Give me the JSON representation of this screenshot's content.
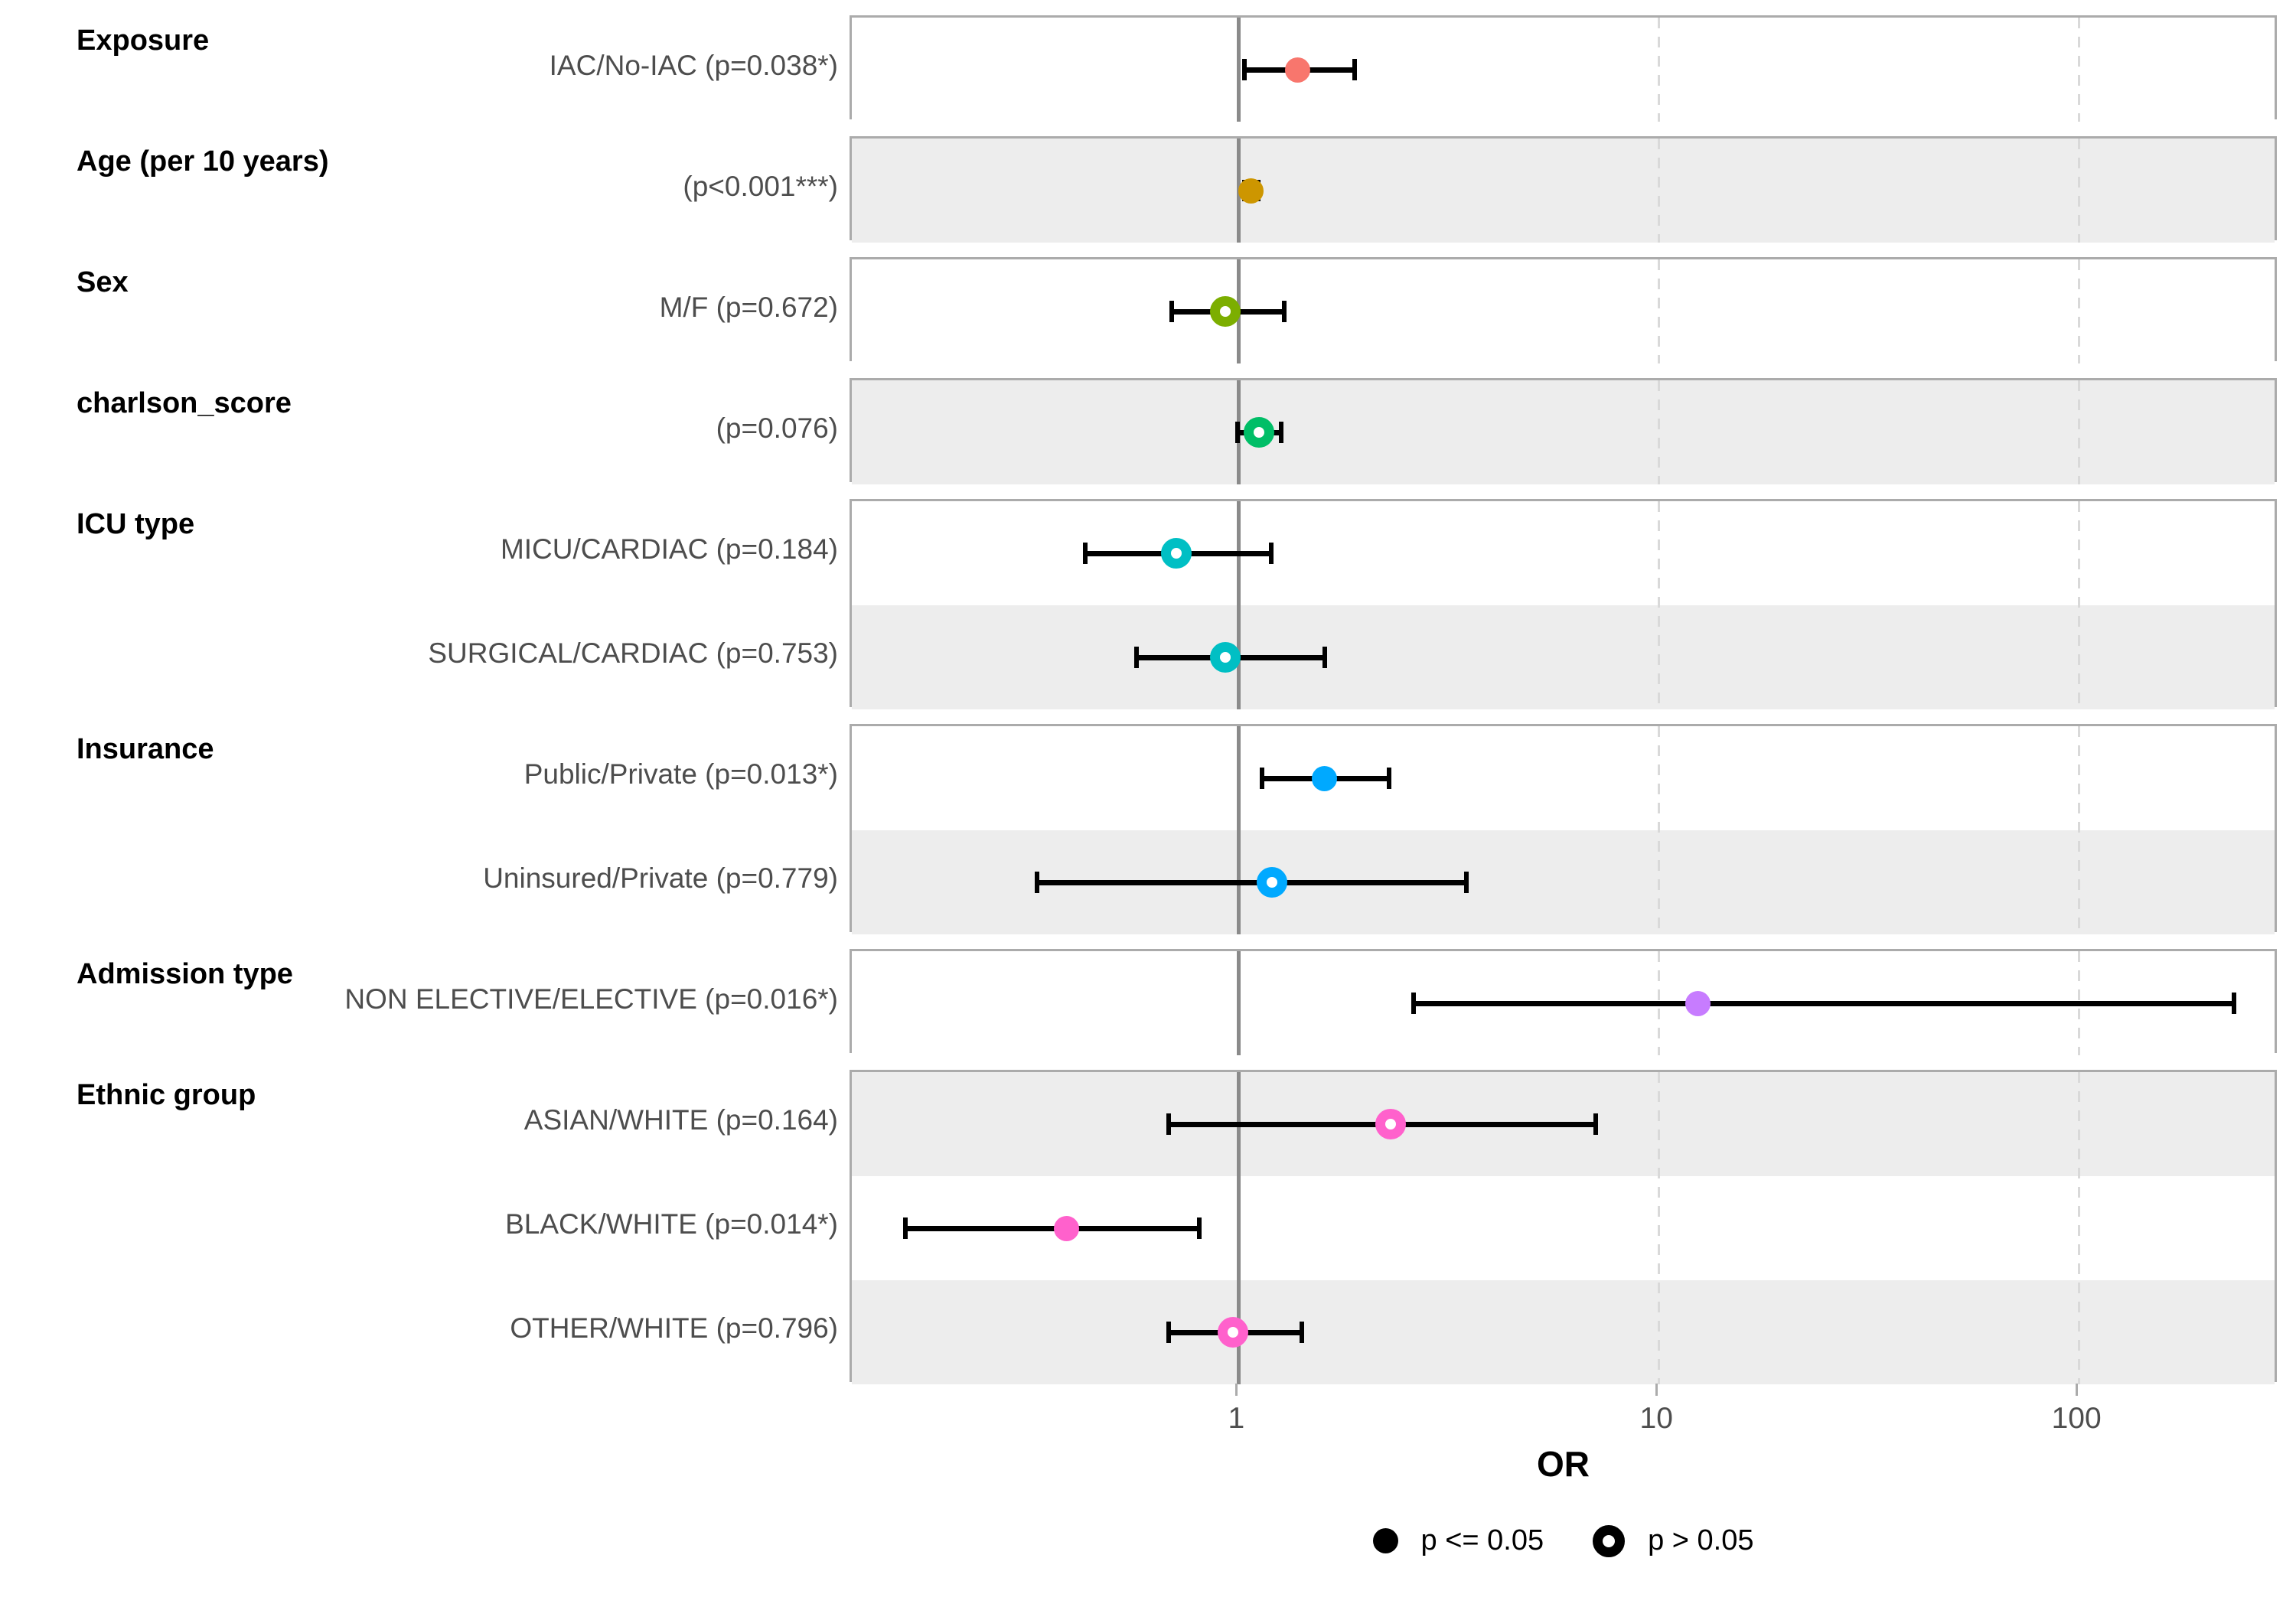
{
  "chart_data": {
    "type": "scatter",
    "subtype": "forest-plot",
    "xlabel": "OR",
    "x_scale": "log10",
    "x_domain": [
      0.12,
      300
    ],
    "x_ticks": [
      {
        "value": 1,
        "label": "1"
      },
      {
        "value": 10,
        "label": "10"
      },
      {
        "value": 100,
        "label": "100"
      }
    ],
    "reference_line": 1,
    "dashed_gridlines": [
      10,
      100
    ],
    "legend": {
      "significant_label": "p <= 0.05",
      "not_significant_label": "p > 0.05"
    },
    "groups": [
      {
        "title": "Exposure",
        "color": "#F8766D",
        "rows": [
          {
            "label": "IAC/No-IAC (p=0.038*)",
            "or": 1.38,
            "ci_low": 1.03,
            "ci_high": 1.9,
            "significant": true
          }
        ]
      },
      {
        "title": "Age (per 10 years)",
        "color": "#CD9600",
        "rows": [
          {
            "label": "(p<0.001***)",
            "or": 1.07,
            "ci_low": 1.03,
            "ci_high": 1.12,
            "significant": true
          }
        ]
      },
      {
        "title": "Sex",
        "color": "#7CAE00",
        "rows": [
          {
            "label": "M/F (p=0.672)",
            "or": 0.93,
            "ci_low": 0.69,
            "ci_high": 1.29,
            "significant": false
          }
        ]
      },
      {
        "title": "charlson_score",
        "color": "#00BE67",
        "rows": [
          {
            "label": "(p=0.076)",
            "or": 1.12,
            "ci_low": 0.99,
            "ci_high": 1.27,
            "significant": false
          }
        ]
      },
      {
        "title": "ICU type",
        "color": "#00BFC4",
        "rows": [
          {
            "label": "MICU/CARDIAC (p=0.184)",
            "or": 0.71,
            "ci_low": 0.43,
            "ci_high": 1.2,
            "significant": false
          },
          {
            "label": "SURGICAL/CARDIAC (p=0.753)",
            "or": 0.93,
            "ci_low": 0.57,
            "ci_high": 1.61,
            "significant": false
          }
        ]
      },
      {
        "title": "Insurance",
        "color": "#00A9FF",
        "rows": [
          {
            "label": "Public/Private (p=0.013*)",
            "or": 1.6,
            "ci_low": 1.13,
            "ci_high": 2.29,
            "significant": true
          },
          {
            "label": "Uninsured/Private (p=0.779)",
            "or": 1.2,
            "ci_low": 0.33,
            "ci_high": 3.5,
            "significant": false
          }
        ]
      },
      {
        "title": "Admission type",
        "color": "#C77CFF",
        "rows": [
          {
            "label": "NON ELECTIVE/ELECTIVE (p=0.016*)",
            "or": 12.4,
            "ci_low": 2.6,
            "ci_high": 235,
            "significant": true
          }
        ]
      },
      {
        "title": "Ethnic group",
        "color": "#FF61CC",
        "rows": [
          {
            "label": "ASIAN/WHITE (p=0.164)",
            "or": 2.3,
            "ci_low": 0.68,
            "ci_high": 7.1,
            "significant": false
          },
          {
            "label": "BLACK/WHITE (p=0.014*)",
            "or": 0.39,
            "ci_low": 0.16,
            "ci_high": 0.81,
            "significant": true
          },
          {
            "label": "OTHER/WHITE (p=0.796)",
            "or": 0.97,
            "ci_low": 0.68,
            "ci_high": 1.42,
            "significant": false
          }
        ]
      }
    ]
  },
  "styles": {
    "stripe_gray": "#EDEDED",
    "stripe_white": "#FFFFFF",
    "panel_border": "#ABABAB",
    "reference_line_color": "#8A8A8A",
    "gridline_color": "#D9D9D9",
    "error_bar_color": "#000000",
    "row_label_color": "#4D4D4D",
    "title_color": "#000000"
  }
}
